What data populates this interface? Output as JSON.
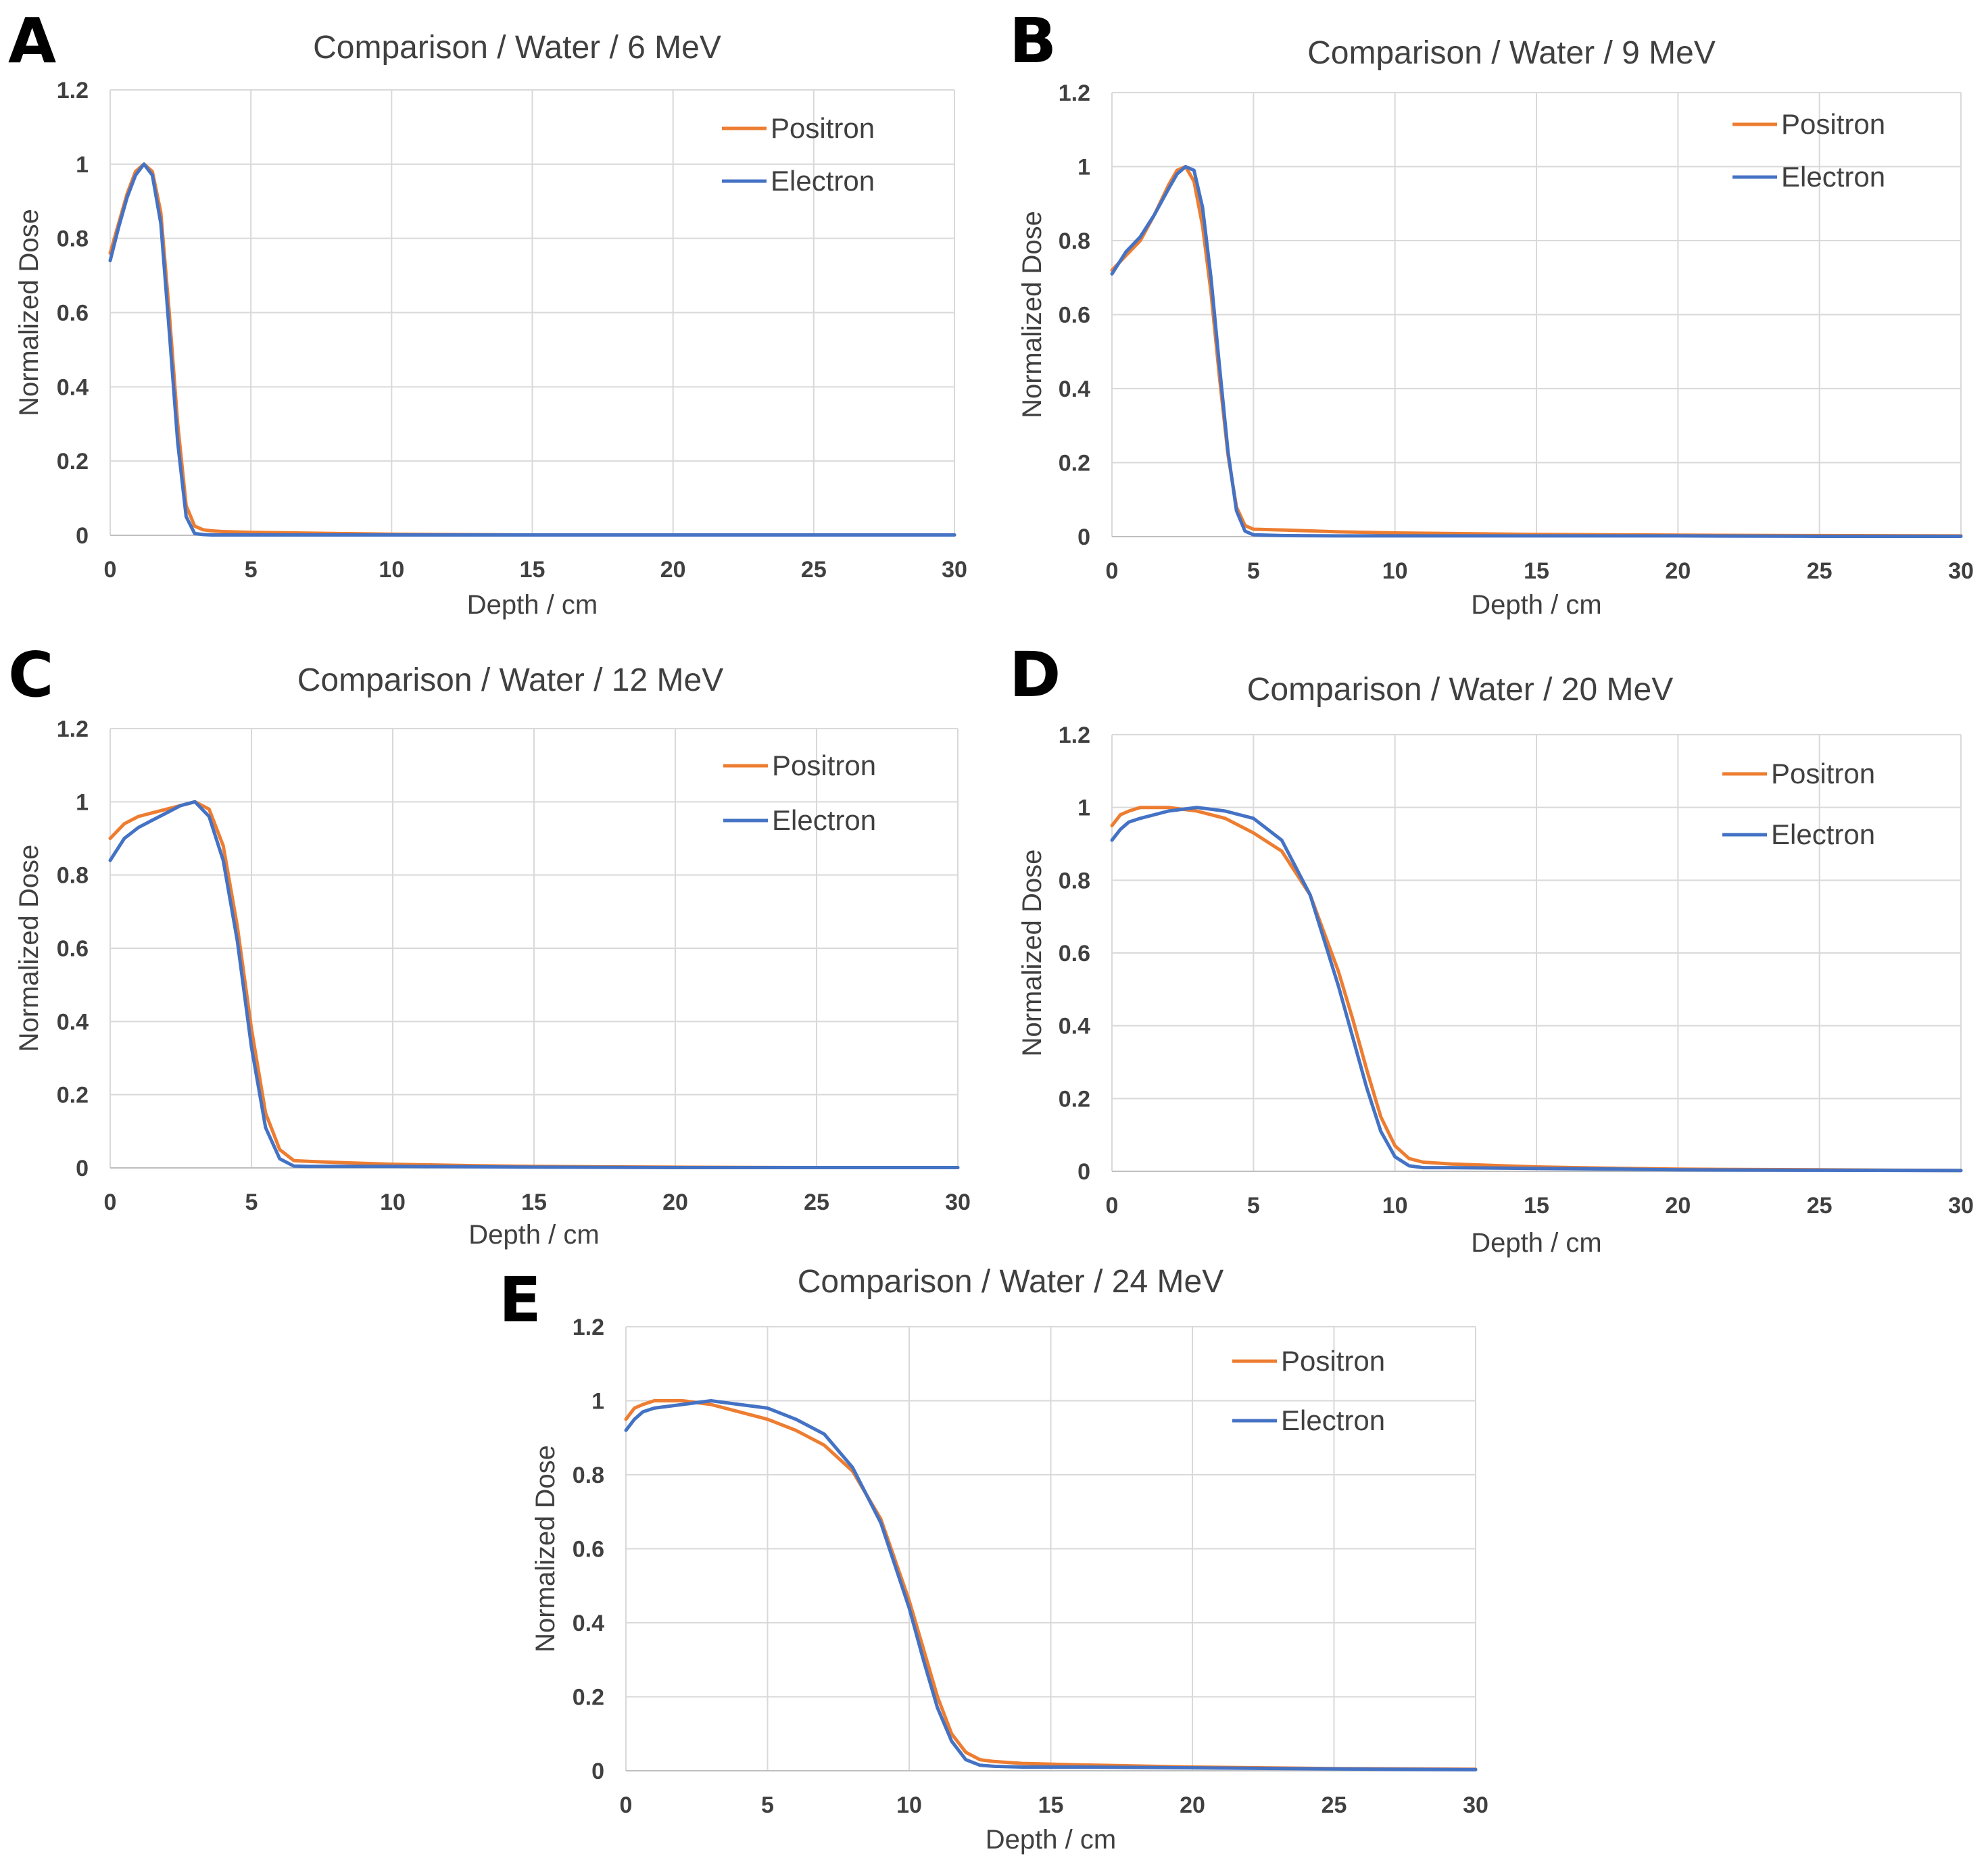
{
  "chart_data": [
    {
      "type": "line",
      "panel": "A",
      "title": "Comparison  / Water / 6 MeV",
      "xlabel": "Depth / cm",
      "ylabel": "Normalized Dose",
      "xlim": [
        0,
        30
      ],
      "ylim": [
        0,
        1.2
      ],
      "xticks": [
        "0",
        "5",
        "10",
        "15",
        "20",
        "25",
        "30"
      ],
      "yticks": [
        "0",
        "0.2",
        "0.4",
        "0.6",
        "0.8",
        "1",
        "1.2"
      ],
      "grid": true,
      "legend": "top-right",
      "series": [
        {
          "name": "Positron",
          "color": "#ED7D31",
          "x": [
            0,
            0.3,
            0.6,
            0.9,
            1.2,
            1.5,
            1.8,
            2.1,
            2.4,
            2.7,
            3.0,
            3.3,
            3.6,
            4,
            5,
            7,
            10,
            15,
            20,
            25,
            30
          ],
          "y": [
            0.76,
            0.84,
            0.92,
            0.98,
            1.0,
            0.98,
            0.87,
            0.6,
            0.3,
            0.08,
            0.025,
            0.015,
            0.012,
            0.01,
            0.008,
            0.006,
            0.003,
            0.001,
            0.001,
            0.001,
            0.001
          ]
        },
        {
          "name": "Electron",
          "color": "#4472C4",
          "x": [
            0,
            0.3,
            0.6,
            0.9,
            1.2,
            1.5,
            1.8,
            2.1,
            2.4,
            2.7,
            3.0,
            3.3,
            3.6,
            4,
            5,
            7,
            10,
            15,
            20,
            25,
            30
          ],
          "y": [
            0.74,
            0.83,
            0.91,
            0.97,
            1.0,
            0.97,
            0.84,
            0.55,
            0.25,
            0.05,
            0.005,
            0.002,
            0.001,
            0.001,
            0.001,
            0.001,
            0.001,
            0.001,
            0.001,
            0.001,
            0.001
          ]
        }
      ]
    },
    {
      "type": "line",
      "panel": "B",
      "title": "Comparison  / Water / 9 MeV",
      "xlabel": "Depth / cm",
      "ylabel": "Normalized Dose",
      "xlim": [
        0,
        30
      ],
      "ylim": [
        0,
        1.2
      ],
      "xticks": [
        "0",
        "5",
        "10",
        "15",
        "20",
        "25",
        "30"
      ],
      "yticks": [
        "0",
        "0.2",
        "0.4",
        "0.6",
        "0.8",
        "1",
        "1.2"
      ],
      "grid": true,
      "legend": "top-right",
      "series": [
        {
          "name": "Positron",
          "color": "#ED7D31",
          "x": [
            0,
            0.5,
            1.0,
            1.5,
            2.0,
            2.3,
            2.6,
            2.9,
            3.2,
            3.5,
            3.8,
            4.1,
            4.4,
            4.7,
            5.0,
            6,
            8,
            10,
            15,
            20,
            25,
            30
          ],
          "y": [
            0.72,
            0.76,
            0.8,
            0.87,
            0.95,
            0.99,
            1.0,
            0.96,
            0.84,
            0.66,
            0.43,
            0.22,
            0.08,
            0.03,
            0.02,
            0.018,
            0.013,
            0.01,
            0.006,
            0.004,
            0.003,
            0.002
          ]
        },
        {
          "name": "Electron",
          "color": "#4472C4",
          "x": [
            0,
            0.5,
            1.0,
            1.5,
            2.0,
            2.3,
            2.6,
            2.9,
            3.2,
            3.5,
            3.8,
            4.1,
            4.4,
            4.7,
            5.0,
            6,
            8,
            10,
            15,
            20,
            25,
            30
          ],
          "y": [
            0.71,
            0.77,
            0.81,
            0.87,
            0.94,
            0.98,
            1.0,
            0.99,
            0.89,
            0.7,
            0.46,
            0.23,
            0.07,
            0.015,
            0.005,
            0.003,
            0.002,
            0.002,
            0.002,
            0.002,
            0.001,
            0.001
          ]
        }
      ]
    },
    {
      "type": "line",
      "panel": "C",
      "title": "Comparison  / Water / 12 MeV",
      "xlabel": "Depth / cm",
      "ylabel": "Normalized Dose",
      "xlim": [
        0,
        30
      ],
      "ylim": [
        0,
        1.2
      ],
      "xticks": [
        "0",
        "5",
        "10",
        "15",
        "20",
        "25",
        "30"
      ],
      "yticks": [
        "0",
        "0.2",
        "0.4",
        "0.6",
        "0.8",
        "1",
        "1.2"
      ],
      "grid": true,
      "legend": "top-right",
      "series": [
        {
          "name": "Positron",
          "color": "#ED7D31",
          "x": [
            0,
            0.5,
            1.0,
            1.5,
            2.0,
            2.5,
            3.0,
            3.5,
            4.0,
            4.5,
            5.0,
            5.5,
            6.0,
            6.5,
            7,
            8,
            10,
            13,
            15,
            20,
            25,
            30
          ],
          "y": [
            0.9,
            0.94,
            0.96,
            0.97,
            0.98,
            0.99,
            1.0,
            0.98,
            0.88,
            0.66,
            0.38,
            0.15,
            0.05,
            0.02,
            0.018,
            0.015,
            0.01,
            0.006,
            0.004,
            0.002,
            0.001,
            0.001
          ]
        },
        {
          "name": "Electron",
          "color": "#4472C4",
          "x": [
            0,
            0.5,
            1.0,
            1.5,
            2.0,
            2.5,
            3.0,
            3.5,
            4.0,
            4.5,
            5.0,
            5.5,
            6.0,
            6.5,
            7,
            8,
            10,
            13,
            15,
            20,
            25,
            30
          ],
          "y": [
            0.84,
            0.9,
            0.93,
            0.95,
            0.97,
            0.99,
            1.0,
            0.96,
            0.84,
            0.62,
            0.33,
            0.11,
            0.025,
            0.005,
            0.004,
            0.004,
            0.004,
            0.003,
            0.002,
            0.001,
            0.001,
            0.001
          ]
        }
      ]
    },
    {
      "type": "line",
      "panel": "D",
      "title": "Comparison  / Water / 20 MeV",
      "xlabel": "Depth / cm",
      "ylabel": "Normalized Dose",
      "xlim": [
        0,
        30
      ],
      "ylim": [
        0,
        1.2
      ],
      "xticks": [
        "0",
        "5",
        "10",
        "15",
        "20",
        "25",
        "30"
      ],
      "yticks": [
        "0",
        "0.2",
        "0.4",
        "0.6",
        "0.8",
        "1",
        "1.2"
      ],
      "grid": true,
      "legend": "top-right",
      "series": [
        {
          "name": "Positron",
          "color": "#ED7D31",
          "x": [
            0,
            0.3,
            0.6,
            1.0,
            2.0,
            3.0,
            4.0,
            5.0,
            6.0,
            7.0,
            8.0,
            8.5,
            9.0,
            9.5,
            10.0,
            10.5,
            11,
            12,
            15,
            18,
            20,
            25,
            30
          ],
          "y": [
            0.95,
            0.98,
            0.99,
            1.0,
            1.0,
            0.99,
            0.97,
            0.93,
            0.88,
            0.76,
            0.55,
            0.42,
            0.28,
            0.15,
            0.07,
            0.035,
            0.025,
            0.02,
            0.012,
            0.008,
            0.006,
            0.004,
            0.002
          ]
        },
        {
          "name": "Electron",
          "color": "#4472C4",
          "x": [
            0,
            0.3,
            0.6,
            1.0,
            2.0,
            3.0,
            4.0,
            5.0,
            6.0,
            7.0,
            8.0,
            8.5,
            9.0,
            9.5,
            10.0,
            10.5,
            11,
            12,
            15,
            18,
            20,
            25,
            30
          ],
          "y": [
            0.91,
            0.94,
            0.96,
            0.97,
            0.99,
            1.0,
            0.99,
            0.97,
            0.91,
            0.76,
            0.51,
            0.37,
            0.23,
            0.11,
            0.04,
            0.015,
            0.01,
            0.01,
            0.008,
            0.006,
            0.004,
            0.003,
            0.002
          ]
        }
      ]
    },
    {
      "type": "line",
      "panel": "E",
      "title": "Comparison  / Water / 24 MeV",
      "xlabel": "Depth / cm",
      "ylabel": "Normalized Dose",
      "xlim": [
        0,
        30
      ],
      "ylim": [
        0,
        1.2
      ],
      "xticks": [
        "0",
        "5",
        "10",
        "15",
        "20",
        "25",
        "30"
      ],
      "yticks": [
        "0",
        "0.2",
        "0.4",
        "0.6",
        "0.8",
        "1",
        "1.2"
      ],
      "grid": true,
      "legend": "top-right",
      "series": [
        {
          "name": "Positron",
          "color": "#ED7D31",
          "x": [
            0,
            0.3,
            0.6,
            1.0,
            2.0,
            3.0,
            4.0,
            5.0,
            6.0,
            7.0,
            8.0,
            9.0,
            10.0,
            10.5,
            11.0,
            11.5,
            12.0,
            12.5,
            13,
            14,
            16,
            20,
            25,
            30
          ],
          "y": [
            0.95,
            0.98,
            0.99,
            1.0,
            1.0,
            0.99,
            0.97,
            0.95,
            0.92,
            0.88,
            0.81,
            0.68,
            0.46,
            0.33,
            0.2,
            0.1,
            0.05,
            0.03,
            0.025,
            0.02,
            0.016,
            0.01,
            0.006,
            0.004
          ]
        },
        {
          "name": "Electron",
          "color": "#4472C4",
          "x": [
            0,
            0.3,
            0.6,
            1.0,
            2.0,
            3.0,
            4.0,
            5.0,
            6.0,
            7.0,
            8.0,
            9.0,
            10.0,
            10.5,
            11.0,
            11.5,
            12.0,
            12.5,
            13,
            14,
            16,
            20,
            25,
            30
          ],
          "y": [
            0.92,
            0.95,
            0.97,
            0.98,
            0.99,
            1.0,
            0.99,
            0.98,
            0.95,
            0.91,
            0.82,
            0.67,
            0.44,
            0.3,
            0.17,
            0.08,
            0.03,
            0.015,
            0.012,
            0.01,
            0.01,
            0.008,
            0.005,
            0.003
          ]
        }
      ]
    }
  ]
}
